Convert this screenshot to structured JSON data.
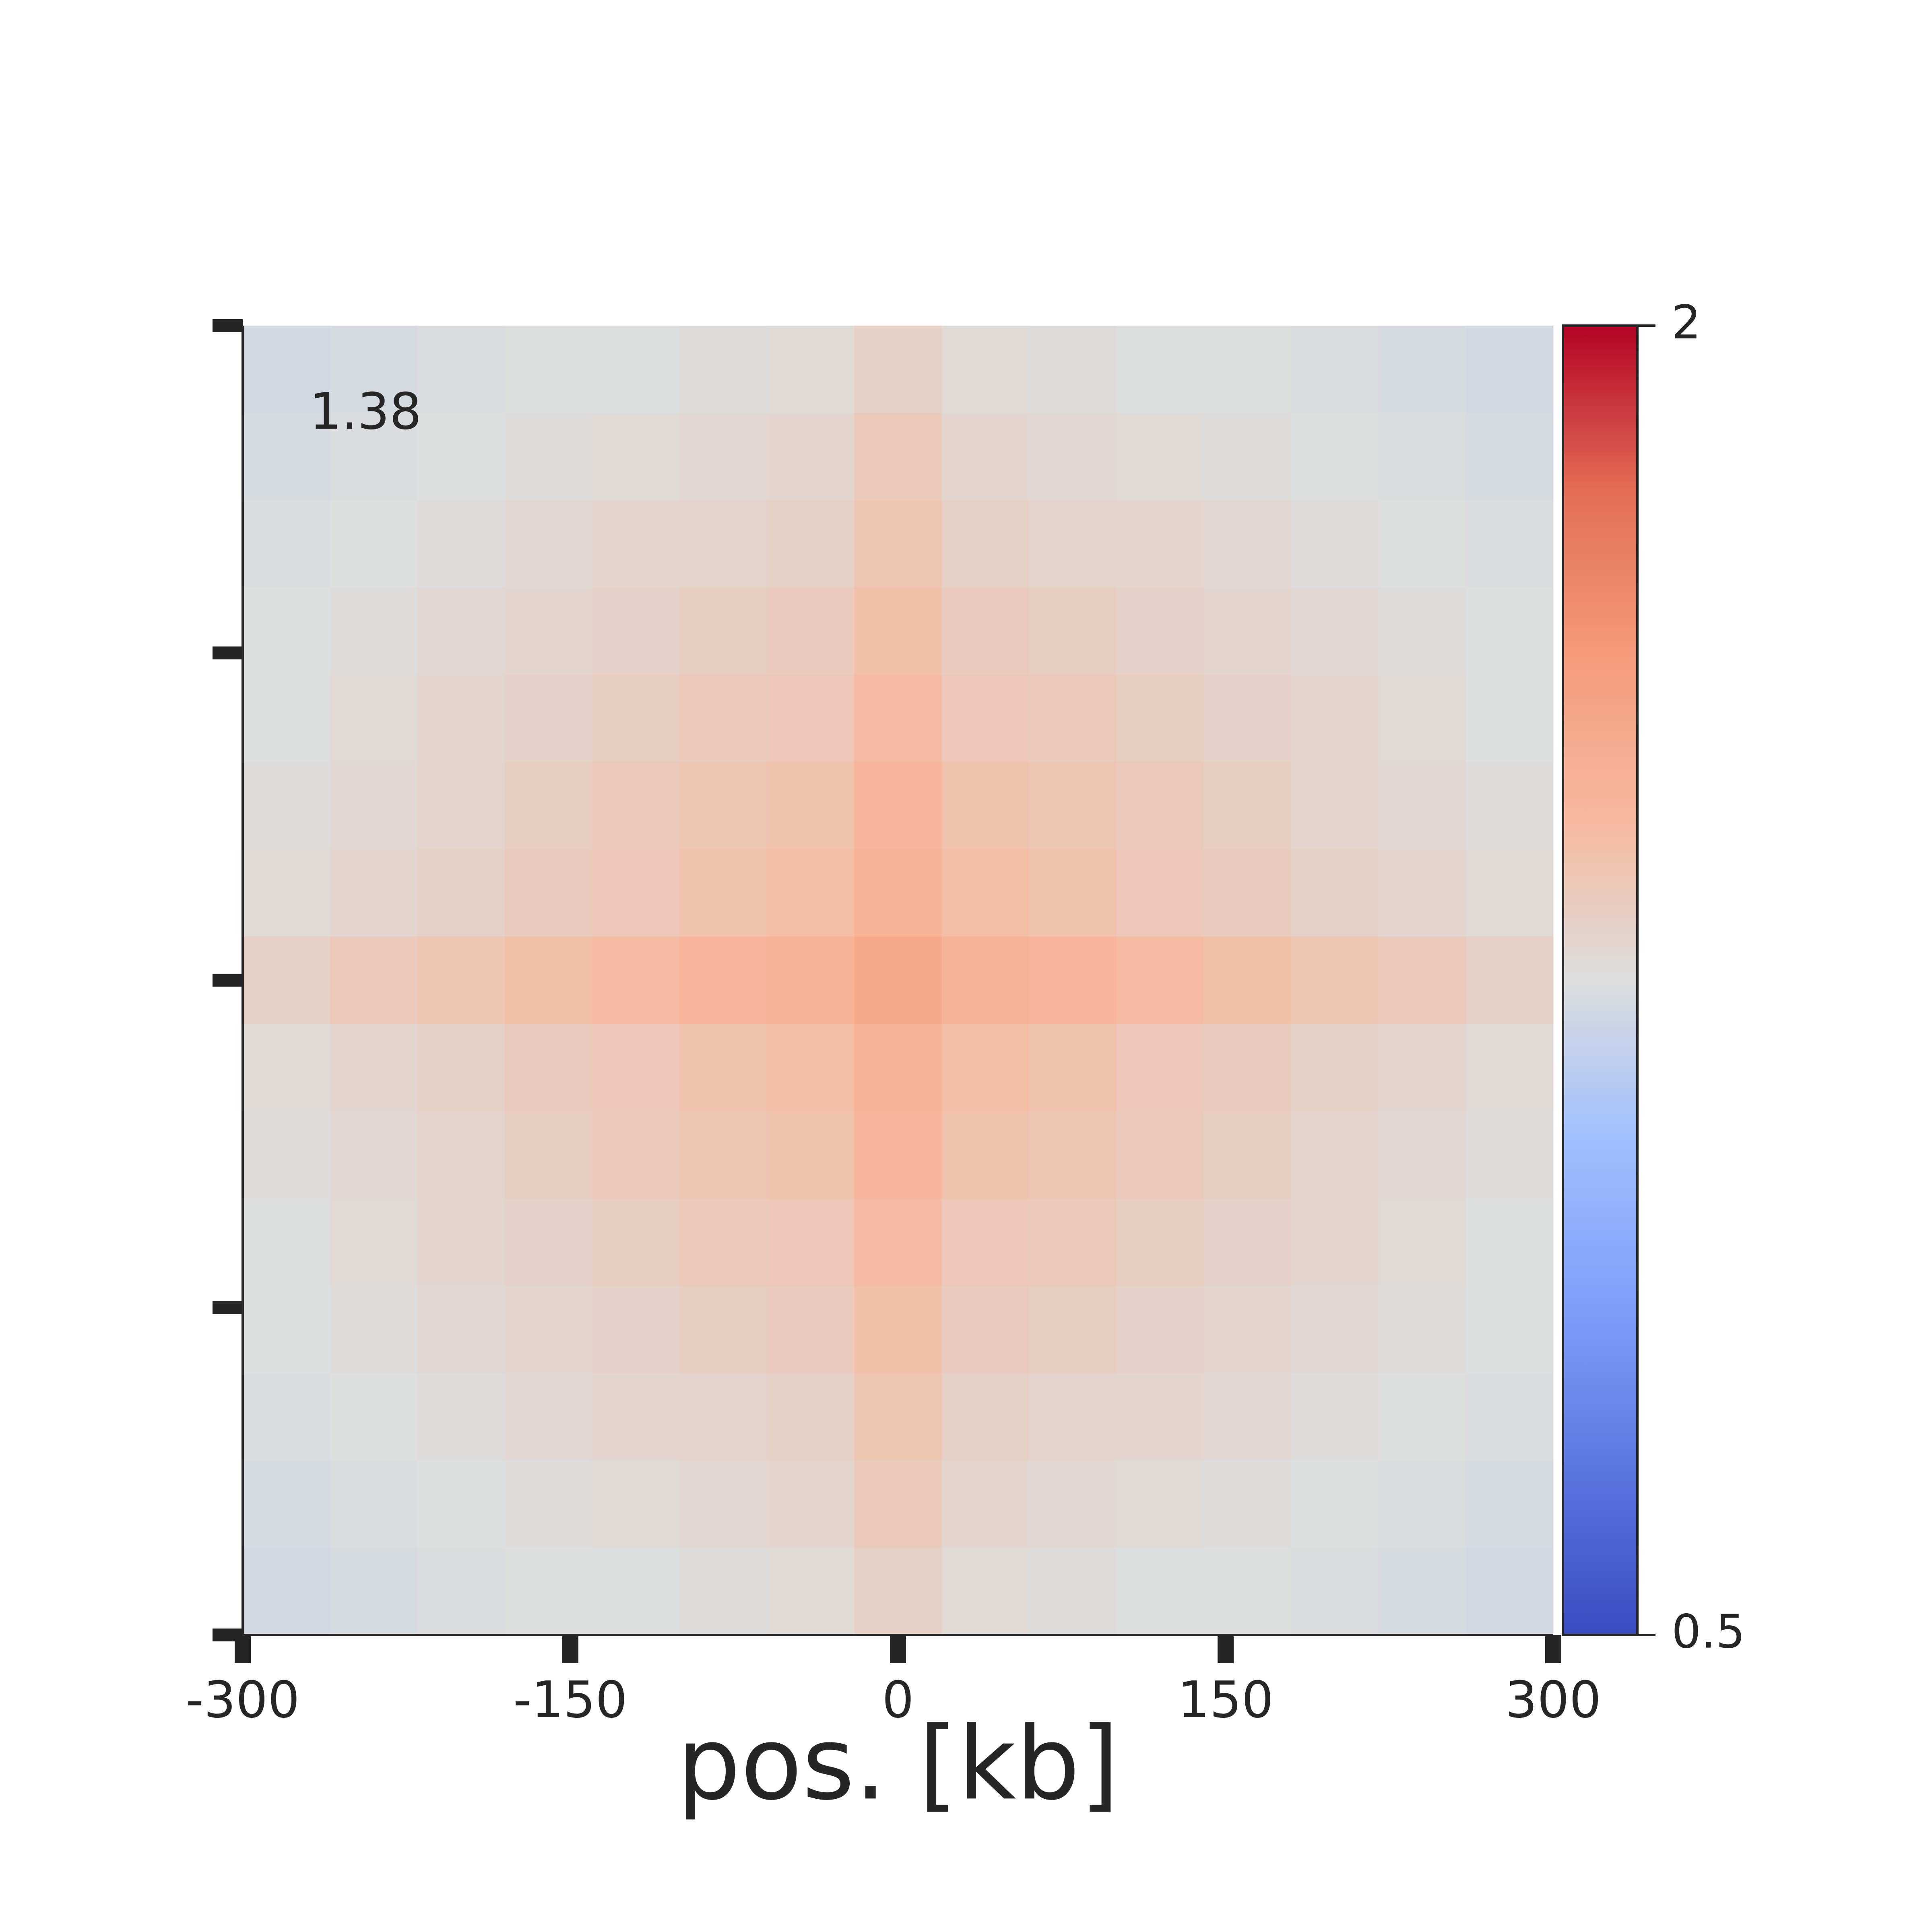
{
  "chart_data": {
    "type": "heatmap",
    "annotation": "1.38",
    "xlabel": "pos. [kb]",
    "xlim": [
      -300,
      300
    ],
    "xticks": [
      -300,
      -150,
      0,
      150,
      300
    ],
    "clim": [
      0.5,
      2
    ],
    "cticks": [
      0.5,
      2
    ],
    "colormap": [
      "#3b4cc0",
      "#5977e3",
      "#7b9ff9",
      "#9ebeff",
      "#dcdddd",
      "#f7b89c",
      "#f49a7b",
      "#e36c55",
      "#b40426"
    ],
    "values": [
      [
        1.22,
        1.23,
        1.24,
        1.25,
        1.25,
        1.26,
        1.27,
        1.32,
        1.27,
        1.26,
        1.25,
        1.25,
        1.24,
        1.23,
        1.22
      ],
      [
        1.23,
        1.24,
        1.25,
        1.26,
        1.27,
        1.28,
        1.29,
        1.35,
        1.29,
        1.28,
        1.27,
        1.26,
        1.25,
        1.24,
        1.23
      ],
      [
        1.24,
        1.25,
        1.26,
        1.28,
        1.29,
        1.3,
        1.32,
        1.37,
        1.32,
        1.3,
        1.29,
        1.28,
        1.26,
        1.25,
        1.24
      ],
      [
        1.25,
        1.26,
        1.28,
        1.29,
        1.31,
        1.33,
        1.34,
        1.4,
        1.34,
        1.33,
        1.31,
        1.29,
        1.28,
        1.26,
        1.25
      ],
      [
        1.25,
        1.27,
        1.29,
        1.31,
        1.33,
        1.35,
        1.36,
        1.42,
        1.36,
        1.35,
        1.33,
        1.31,
        1.29,
        1.27,
        1.25
      ],
      [
        1.26,
        1.28,
        1.3,
        1.33,
        1.35,
        1.37,
        1.39,
        1.45,
        1.39,
        1.37,
        1.35,
        1.33,
        1.3,
        1.28,
        1.26
      ],
      [
        1.27,
        1.29,
        1.32,
        1.34,
        1.36,
        1.39,
        1.41,
        1.47,
        1.41,
        1.39,
        1.36,
        1.34,
        1.32,
        1.29,
        1.27
      ],
      [
        1.32,
        1.35,
        1.37,
        1.4,
        1.42,
        1.45,
        1.47,
        1.54,
        1.47,
        1.45,
        1.42,
        1.4,
        1.37,
        1.35,
        1.32
      ],
      [
        1.27,
        1.29,
        1.32,
        1.34,
        1.36,
        1.39,
        1.41,
        1.47,
        1.41,
        1.39,
        1.36,
        1.34,
        1.32,
        1.29,
        1.27
      ],
      [
        1.26,
        1.28,
        1.3,
        1.33,
        1.35,
        1.37,
        1.39,
        1.45,
        1.39,
        1.37,
        1.35,
        1.33,
        1.3,
        1.28,
        1.26
      ],
      [
        1.25,
        1.27,
        1.29,
        1.31,
        1.33,
        1.35,
        1.36,
        1.42,
        1.36,
        1.35,
        1.33,
        1.31,
        1.29,
        1.27,
        1.25
      ],
      [
        1.25,
        1.26,
        1.28,
        1.29,
        1.31,
        1.33,
        1.34,
        1.4,
        1.34,
        1.33,
        1.31,
        1.29,
        1.28,
        1.26,
        1.25
      ],
      [
        1.24,
        1.25,
        1.26,
        1.28,
        1.29,
        1.3,
        1.32,
        1.37,
        1.32,
        1.3,
        1.29,
        1.28,
        1.26,
        1.25,
        1.24
      ],
      [
        1.23,
        1.24,
        1.25,
        1.26,
        1.27,
        1.28,
        1.29,
        1.35,
        1.29,
        1.28,
        1.27,
        1.26,
        1.25,
        1.24,
        1.23
      ],
      [
        1.22,
        1.23,
        1.24,
        1.25,
        1.25,
        1.26,
        1.27,
        1.32,
        1.27,
        1.26,
        1.25,
        1.25,
        1.24,
        1.23,
        1.22
      ]
    ]
  }
}
